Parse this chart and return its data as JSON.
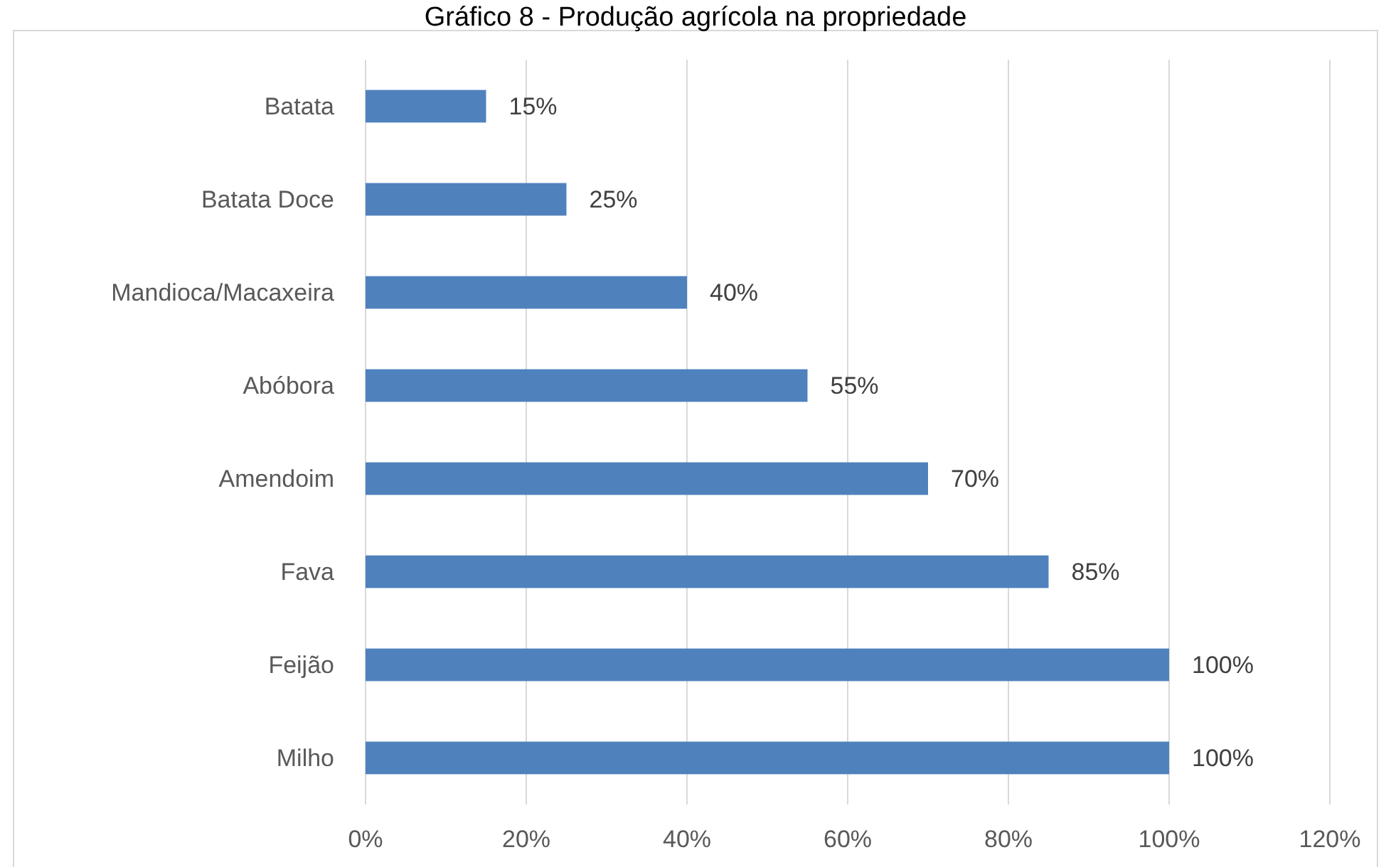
{
  "chart_data": {
    "type": "bar",
    "orientation": "horizontal",
    "title": "Gráfico 8 - Produção agrícola na propriedade",
    "categories": [
      "Batata",
      "Batata Doce",
      "Mandioca/Macaxeira",
      "Abóbora",
      "Amendoim",
      "Fava",
      "Feijão",
      "Milho"
    ],
    "values": [
      15,
      25,
      40,
      55,
      70,
      85,
      100,
      100
    ],
    "value_labels": [
      "15%",
      "25%",
      "40%",
      "55%",
      "70%",
      "85%",
      "100%",
      "100%"
    ],
    "color": "#4f81bd",
    "xlim": [
      0,
      120
    ],
    "xticks": [
      {
        "value": 0,
        "label": "0%"
      },
      {
        "value": 20,
        "label": "20%"
      },
      {
        "value": 40,
        "label": "40%"
      },
      {
        "value": 60,
        "label": "60%"
      },
      {
        "value": 80,
        "label": "80%"
      },
      {
        "value": 100,
        "label": "100%"
      },
      {
        "value": 120,
        "label": "120%"
      }
    ],
    "grid": "x"
  }
}
